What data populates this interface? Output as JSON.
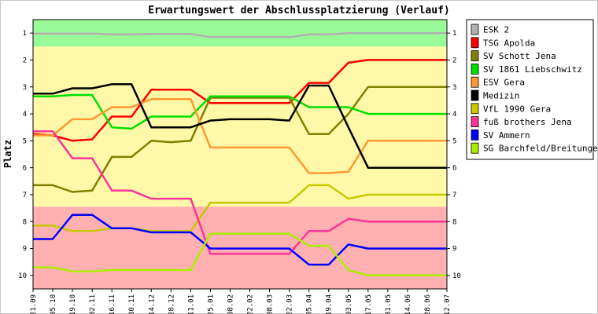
{
  "chart_data": {
    "type": "line",
    "title": "Erwartungswert der Abschlussplatzierung (Verlauf)",
    "ylabel": "Platz",
    "xlabel": "",
    "ylim": [
      0.5,
      10.5
    ],
    "y_inverted": true,
    "yticks": [
      1,
      2,
      3,
      4,
      5,
      6,
      7,
      8,
      9,
      10
    ],
    "categories": [
      "21.09",
      "05.10",
      "19.10",
      "02.11",
      "16.11",
      "30.11",
      "14.12",
      "28.12",
      "11.01",
      "25.01",
      "08.02",
      "22.02",
      "08.03",
      "22.03",
      "05.04",
      "19.04",
      "03.05",
      "17.05",
      "31.05",
      "14.06",
      "28.06",
      "12.07"
    ],
    "zones": [
      {
        "from": 0.5,
        "to": 1.5,
        "color": "#98fb98"
      },
      {
        "from": 1.5,
        "to": 7.45,
        "color": "#fff8a8"
      },
      {
        "from": 7.45,
        "to": 10.5,
        "color": "#ffb0b0"
      }
    ],
    "legend_position": "right",
    "series": [
      {
        "name": "ESK 2",
        "color": "#b0b0b0",
        "values": [
          1.02,
          1.02,
          1.02,
          1.02,
          1.05,
          1.05,
          1.03,
          1.03,
          1.03,
          1.15,
          1.15,
          1.15,
          1.15,
          1.15,
          1.05,
          1.05,
          1.0,
          1.0,
          1.0,
          1.0,
          1.0,
          1.0
        ]
      },
      {
        "name": "TSG Apolda",
        "color": "#ff0000",
        "values": [
          4.75,
          4.8,
          5.0,
          4.95,
          4.1,
          4.1,
          3.1,
          3.1,
          3.1,
          3.6,
          3.6,
          3.6,
          3.6,
          3.6,
          2.85,
          2.85,
          2.1,
          2.0,
          2.0,
          2.0,
          2.0,
          2.0
        ]
      },
      {
        "name": "SV Schott Jena",
        "color": "#808000",
        "values": [
          6.65,
          6.65,
          6.9,
          6.85,
          5.6,
          5.6,
          5.0,
          5.05,
          5.0,
          3.4,
          3.4,
          3.4,
          3.4,
          3.4,
          4.75,
          4.75,
          4.0,
          3.0,
          3.0,
          3.0,
          3.0,
          3.0
        ]
      },
      {
        "name": "SV 1861 Liebschwitz",
        "color": "#00e000",
        "values": [
          3.35,
          3.35,
          3.3,
          3.3,
          4.5,
          4.55,
          4.1,
          4.1,
          4.1,
          3.35,
          3.35,
          3.35,
          3.35,
          3.35,
          3.75,
          3.75,
          3.75,
          4.0,
          4.0,
          4.0,
          4.0,
          4.0
        ]
      },
      {
        "name": "ESV Gera",
        "color": "#ff9933",
        "values": [
          4.8,
          4.8,
          4.2,
          4.2,
          3.75,
          3.75,
          3.45,
          3.45,
          3.45,
          5.25,
          5.25,
          5.25,
          5.25,
          5.25,
          6.2,
          6.2,
          6.15,
          5.0,
          5.0,
          5.0,
          5.0,
          5.0
        ]
      },
      {
        "name": "Medizin",
        "color": "#000000",
        "values": [
          3.25,
          3.25,
          3.05,
          3.05,
          2.9,
          2.9,
          4.5,
          4.5,
          4.5,
          4.25,
          4.2,
          4.2,
          4.2,
          4.25,
          2.95,
          2.95,
          4.5,
          6.0,
          6.0,
          6.0,
          6.0,
          6.0
        ]
      },
      {
        "name": "VfL 1990 Gera",
        "color": "#c8c800",
        "values": [
          8.15,
          8.15,
          8.35,
          8.35,
          8.25,
          8.25,
          8.35,
          8.35,
          8.35,
          7.3,
          7.3,
          7.3,
          7.3,
          7.3,
          6.65,
          6.65,
          7.15,
          7.0,
          7.0,
          7.0,
          7.0,
          7.0
        ]
      },
      {
        "name": "fuß brothers Jena",
        "color": "#ff3399",
        "values": [
          4.65,
          4.65,
          5.65,
          5.65,
          6.85,
          6.85,
          7.15,
          7.15,
          7.15,
          9.2,
          9.2,
          9.2,
          9.2,
          9.2,
          8.35,
          8.35,
          7.9,
          8.0,
          8.0,
          8.0,
          8.0,
          8.0
        ]
      },
      {
        "name": "SV Ammern",
        "color": "#0000ff",
        "values": [
          8.65,
          8.65,
          7.75,
          7.75,
          8.25,
          8.25,
          8.4,
          8.4,
          8.4,
          9.0,
          9.0,
          9.0,
          9.0,
          9.0,
          9.6,
          9.6,
          8.85,
          9.0,
          9.0,
          9.0,
          9.0,
          9.0
        ]
      },
      {
        "name": "SG Barchfeld/Breitungen",
        "color": "#aaee00",
        "values": [
          9.7,
          9.7,
          9.85,
          9.85,
          9.8,
          9.8,
          9.8,
          9.8,
          9.8,
          8.45,
          8.45,
          8.45,
          8.45,
          8.45,
          8.9,
          8.9,
          9.8,
          10.0,
          10.0,
          10.0,
          10.0,
          10.0
        ]
      }
    ]
  }
}
